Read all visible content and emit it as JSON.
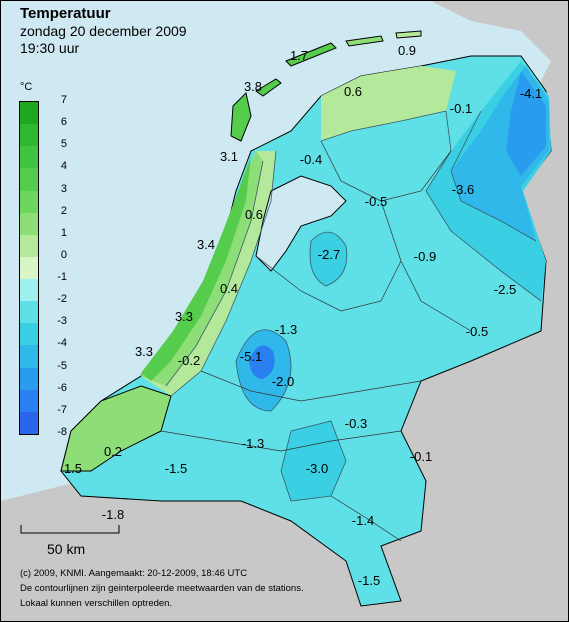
{
  "title": "Temperatuur",
  "subtitle": "zondag 20 december 2009",
  "time": "19:30 uur",
  "unit": "°C",
  "legend": {
    "ticks": [
      "7",
      "6",
      "5",
      "4",
      "3",
      "2",
      "1",
      "0",
      "-1",
      "-2",
      "-3",
      "-4",
      "-5",
      "-6",
      "-7",
      "-8"
    ],
    "colors": [
      "#1fa81f",
      "#2fb82f",
      "#40c440",
      "#55cc4c",
      "#6dd65e",
      "#8ede78",
      "#b4e99c",
      "#d8f5c8",
      "#9ff0ee",
      "#5fe0e6",
      "#3bcfe3",
      "#30b8ea",
      "#2a9cef",
      "#2a80f0",
      "#2a66ec"
    ]
  },
  "colors": {
    "sea": "#cfe9f3",
    "foreign_land": "#c8c8c8",
    "contour": "#3a5a6a",
    "border": "#000000"
  },
  "values": [
    {
      "id": "v1",
      "text": "1.7"
    },
    {
      "id": "v2",
      "text": "0.9"
    },
    {
      "id": "v3",
      "text": "3.8"
    },
    {
      "id": "v4",
      "text": "0.6"
    },
    {
      "id": "v5",
      "text": "-0.1"
    },
    {
      "id": "v6",
      "text": "-4.1"
    },
    {
      "id": "v7",
      "text": "3.1"
    },
    {
      "id": "v8",
      "text": "-0.4"
    },
    {
      "id": "v9",
      "text": "-3.6"
    },
    {
      "id": "v10",
      "text": "-0.5"
    },
    {
      "id": "v11",
      "text": "0.6"
    },
    {
      "id": "v12",
      "text": "3.4"
    },
    {
      "id": "v13",
      "text": "-2.7"
    },
    {
      "id": "v14",
      "text": "-0.9"
    },
    {
      "id": "v15",
      "text": "0.4"
    },
    {
      "id": "v16",
      "text": "-2.5"
    },
    {
      "id": "v17",
      "text": "3.3"
    },
    {
      "id": "v18",
      "text": "-1.3"
    },
    {
      "id": "v19",
      "text": "-0.5"
    },
    {
      "id": "v20",
      "text": "3.3"
    },
    {
      "id": "v21",
      "text": "-0.2"
    },
    {
      "id": "v22",
      "text": "-5.1"
    },
    {
      "id": "v23",
      "text": "-2.0"
    },
    {
      "id": "v24",
      "text": "-0.3"
    },
    {
      "id": "v25",
      "text": "0.2"
    },
    {
      "id": "v26",
      "text": "-1.3"
    },
    {
      "id": "v27",
      "text": "-0.1"
    },
    {
      "id": "v28",
      "text": "1.5"
    },
    {
      "id": "v29",
      "text": "-1.5"
    },
    {
      "id": "v30",
      "text": "-3.0"
    },
    {
      "id": "v31",
      "text": "-1.8"
    },
    {
      "id": "v32",
      "text": "-1.4"
    },
    {
      "id": "v33",
      "text": "-1.5"
    }
  ],
  "scale_bar": {
    "label": "50 km"
  },
  "credits": [
    "(c) 2009, KNMI. Aangemaakt: 20-12-2009, 18:46 UTC",
    "De contourlijnen zijn geinterpoleerde meetwaarden van de stations.",
    "Lokaal kunnen verschillen optreden."
  ]
}
